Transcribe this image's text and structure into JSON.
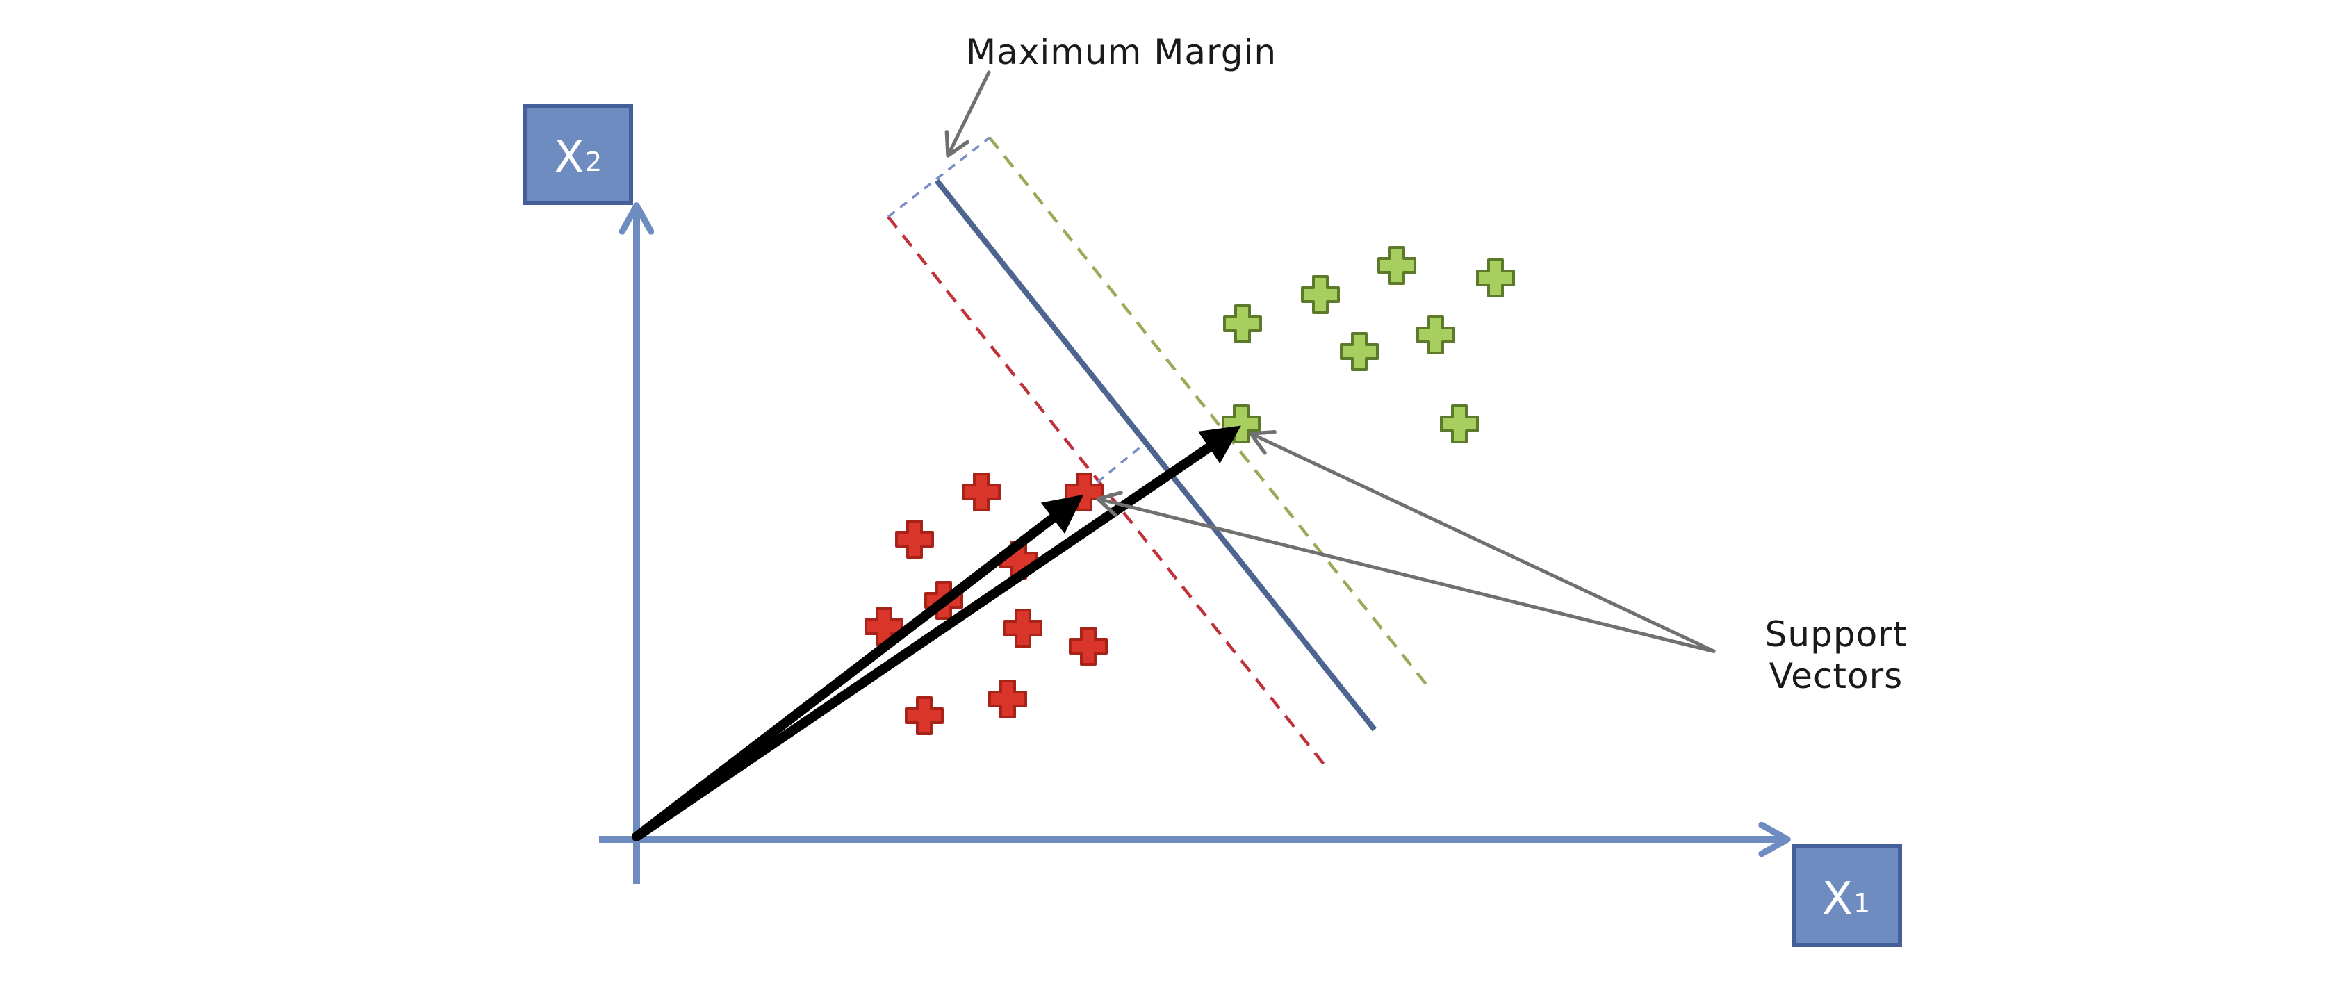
{
  "labels": {
    "x1_letter": "X",
    "x1_sub": "1",
    "x2_letter": "X",
    "x2_sub": "2",
    "maximum_margin": "Maximum Margin",
    "support_vectors_line1": "Support",
    "support_vectors_line2": "Vectors"
  },
  "colors": {
    "axis": "#6e8cc0",
    "axis_box_border": "#44609a",
    "class_negative": "#d9352b",
    "class_negative_border": "#a82218",
    "class_positive": "#a6cf60",
    "class_positive_border": "#5c7a2a",
    "hyperplane": "#4f6591",
    "margin_negative": "#c0323a",
    "margin_positive": "#9aaa58",
    "vectors": "#000000",
    "pointers": "#707070"
  },
  "icons": {
    "data_point": "plus-cross-icon",
    "arrowhead": "arrowhead-icon"
  }
}
